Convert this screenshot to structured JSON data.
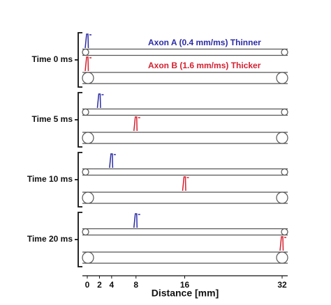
{
  "chart_data": {
    "type": "axon-spikes",
    "categories": [
      "Time 0 ms",
      "Time 5 ms",
      "Time 10 ms",
      "Time 20 ms"
    ],
    "series": [
      {
        "name": "Axon A (0.4 mm/ms) Thinner",
        "color": "#2b2ba6",
        "values": [
          0,
          2,
          4,
          8
        ]
      },
      {
        "name": "Axon B (1.6 mm/ms) Thicker",
        "color": "#d42030",
        "values": [
          0,
          8,
          16,
          32
        ]
      }
    ],
    "xlabel": "Distance [mm]",
    "xlim": [
      0,
      32
    ],
    "xticks": [
      0,
      2,
      4,
      8,
      16,
      32
    ]
  }
}
